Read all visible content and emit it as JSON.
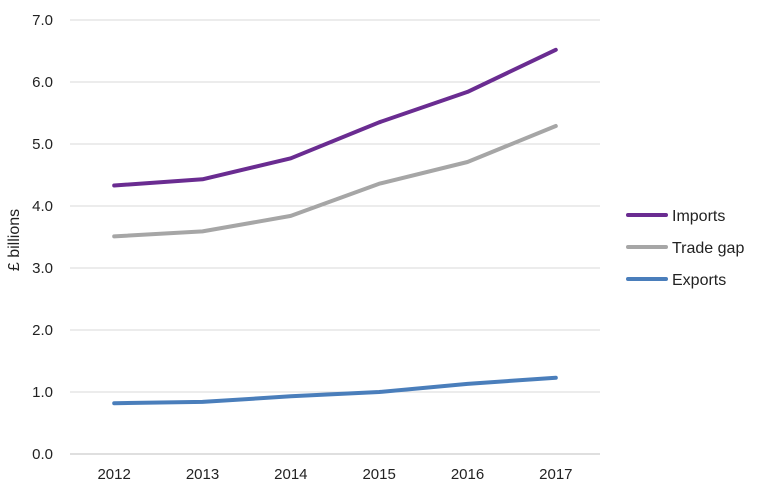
{
  "chart_data": {
    "type": "line",
    "title": "",
    "xlabel": "",
    "ylabel": "£ billions",
    "x": [
      "2012",
      "2013",
      "2014",
      "2015",
      "2016",
      "2017"
    ],
    "ylim": [
      0,
      7
    ],
    "yticks": [
      "0.0",
      "1.0",
      "2.0",
      "3.0",
      "4.0",
      "5.0",
      "6.0",
      "7.0"
    ],
    "grid": true,
    "legend_position": "right",
    "series": [
      {
        "name": "Imports",
        "color": "#6a2c91",
        "values": [
          4.33,
          4.43,
          4.77,
          5.35,
          5.84,
          6.52
        ]
      },
      {
        "name": "Trade gap",
        "color": "#a6a6a6",
        "values": [
          3.51,
          3.59,
          3.84,
          4.36,
          4.71,
          5.29
        ]
      },
      {
        "name": "Exports",
        "color": "#4a7ebb",
        "values": [
          0.82,
          0.84,
          0.93,
          1.0,
          1.13,
          1.23
        ]
      }
    ]
  }
}
